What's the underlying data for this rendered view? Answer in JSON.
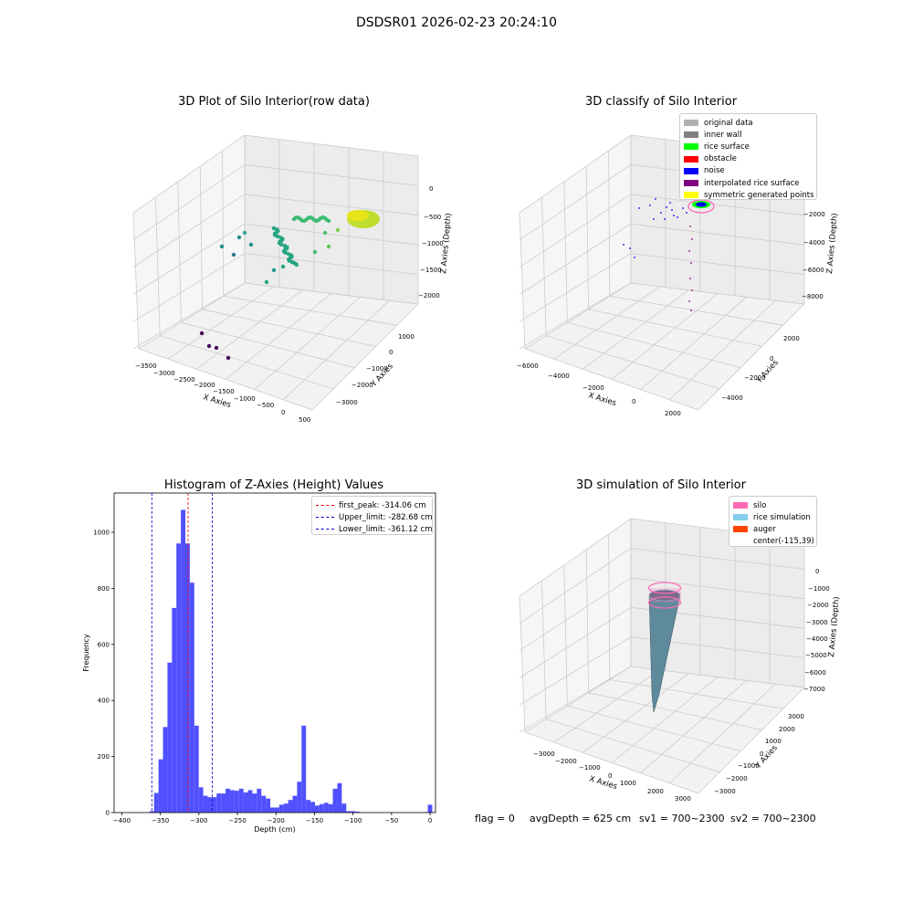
{
  "suptitle": "DSDSR01 2026-02-23 20:24:10",
  "footer": {
    "flag": "flag = 0",
    "avg": "avgDepth = 625 cm",
    "sv1": "sv1 = 700~2300",
    "sv2": "sv2 = 700~2300"
  },
  "colors": {
    "histogram_bar": "#5050ff",
    "first_peak": "#ff0000",
    "limits": "#0000cc",
    "silo": "#ff69b4",
    "rice_simulation": "#87ceeb",
    "auger": "#ff4500"
  },
  "chart_data": [
    {
      "type": "scatter",
      "projection": "3d",
      "title": "3D Plot of Silo Interior(row data)",
      "xlabel": "X Axies",
      "ylabel": "Y Axies",
      "zlabel": "Z Axies (Depth)",
      "xticks": [
        "−3500",
        "−3000",
        "−2500",
        "−2000",
        "−1500",
        "−1000",
        "−500",
        "0",
        "500"
      ],
      "yticks": [
        "1000",
        "0",
        "−1000",
        "−2000",
        "−3000"
      ],
      "zticks": [
        "0",
        "−500",
        "−1000",
        "−1500",
        "−2000"
      ],
      "colormap": "viridis",
      "grid": true
    },
    {
      "type": "scatter",
      "projection": "3d",
      "title": "3D classify of Silo Interior",
      "xlabel": "X Axies",
      "ylabel": "Y Axies",
      "zlabel": "Z Axies (Depth)",
      "xticks": [
        "−6000",
        "−4000",
        "−2000",
        "0",
        "2000"
      ],
      "yticks": [
        "2000",
        "0",
        "−2000",
        "−4000"
      ],
      "zticks": [
        "−2000",
        "−4000",
        "−6000",
        "−8000"
      ],
      "legend_position": "top-right",
      "legend": [
        {
          "label": "original data",
          "color": "#b0b0b0"
        },
        {
          "label": "inner wall",
          "color": "#808080"
        },
        {
          "label": "rice surface",
          "color": "#00ff00"
        },
        {
          "label": "obstacle",
          "color": "#ff0000"
        },
        {
          "label": "noise",
          "color": "#0000ff"
        },
        {
          "label": "interpolated rice surface",
          "color": "#800080"
        },
        {
          "label": "symmetric generated points",
          "color": "#ffff00"
        }
      ],
      "grid": true
    },
    {
      "type": "bar",
      "title": "Histogram of Z-Axies (Height) Values",
      "xlabel": "Depth (cm)",
      "ylabel": "Frequency",
      "xlim": [
        -410,
        7
      ],
      "ylim": [
        0,
        1140
      ],
      "xticks": [
        "−400",
        "−350",
        "−300",
        "−250",
        "−200",
        "−150",
        "−100",
        "−50",
        "0"
      ],
      "xtick_values": [
        -400,
        -350,
        -300,
        -250,
        -200,
        -150,
        -100,
        -50,
        0
      ],
      "yticks": [
        "0",
        "200",
        "400",
        "600",
        "800",
        "1000"
      ],
      "ytick_values": [
        0,
        200,
        400,
        600,
        800,
        1000
      ],
      "bin_width": 5.8,
      "bins": [
        {
          "x": -364.0,
          "count": 5
        },
        {
          "x": -358.2,
          "count": 70
        },
        {
          "x": -352.4,
          "count": 190
        },
        {
          "x": -346.6,
          "count": 305
        },
        {
          "x": -340.8,
          "count": 535
        },
        {
          "x": -335.0,
          "count": 730
        },
        {
          "x": -329.2,
          "count": 960
        },
        {
          "x": -323.4,
          "count": 1080
        },
        {
          "x": -317.6,
          "count": 960
        },
        {
          "x": -311.8,
          "count": 820
        },
        {
          "x": -306.0,
          "count": 310
        },
        {
          "x": -300.2,
          "count": 90
        },
        {
          "x": -294.4,
          "count": 60
        },
        {
          "x": -288.6,
          "count": 55
        },
        {
          "x": -282.8,
          "count": 55
        },
        {
          "x": -277.0,
          "count": 68
        },
        {
          "x": -271.2,
          "count": 68
        },
        {
          "x": -265.4,
          "count": 85
        },
        {
          "x": -259.6,
          "count": 80
        },
        {
          "x": -253.8,
          "count": 78
        },
        {
          "x": -248.0,
          "count": 85
        },
        {
          "x": -242.2,
          "count": 72
        },
        {
          "x": -236.4,
          "count": 80
        },
        {
          "x": -230.6,
          "count": 68
        },
        {
          "x": -224.8,
          "count": 85
        },
        {
          "x": -219.0,
          "count": 60
        },
        {
          "x": -213.2,
          "count": 50
        },
        {
          "x": -207.4,
          "count": 18
        },
        {
          "x": -201.6,
          "count": 18
        },
        {
          "x": -195.8,
          "count": 28
        },
        {
          "x": -190.0,
          "count": 32
        },
        {
          "x": -184.2,
          "count": 45
        },
        {
          "x": -178.4,
          "count": 60
        },
        {
          "x": -172.6,
          "count": 110
        },
        {
          "x": -166.8,
          "count": 310
        },
        {
          "x": -161.0,
          "count": 45
        },
        {
          "x": -155.2,
          "count": 38
        },
        {
          "x": -149.4,
          "count": 25
        },
        {
          "x": -143.6,
          "count": 30
        },
        {
          "x": -137.8,
          "count": 35
        },
        {
          "x": -132.0,
          "count": 30
        },
        {
          "x": -126.2,
          "count": 85
        },
        {
          "x": -120.4,
          "count": 105
        },
        {
          "x": -114.6,
          "count": 32
        },
        {
          "x": -108.8,
          "count": 5
        },
        {
          "x": -103.0,
          "count": 5
        },
        {
          "x": -97.2,
          "count": 3
        },
        {
          "x": -6.0,
          "count": 2
        },
        {
          "x": -3.0,
          "count": 28
        }
      ],
      "vlines": [
        {
          "label": "first_peak: -314.06 cm",
          "x": -314.06,
          "color": "#ff0000",
          "style": "dashed"
        },
        {
          "label": "Upper_limit: -282.68 cm",
          "x": -282.68,
          "color": "#0000cc",
          "style": "dashed"
        },
        {
          "label": "Lower_limit: -361.12 cm",
          "x": -361.12,
          "color": "#0000cc",
          "style": "dashed"
        }
      ],
      "legend_position": "top-right",
      "grid": false
    },
    {
      "type": "surface",
      "projection": "3d",
      "title": "3D simulation of Silo Interior",
      "xlabel": "X Axies",
      "ylabel": "Y Axies",
      "zlabel": "Z Axies (Depth)",
      "xticks": [
        "−3000",
        "−2000",
        "−1000",
        "0",
        "1000",
        "2000",
        "3000"
      ],
      "yticks": [
        "3000",
        "2000",
        "1000",
        "0",
        "−1000",
        "−2000",
        "−3000"
      ],
      "zticks": [
        "0",
        "−1000",
        "−2000",
        "−3000",
        "−4000",
        "−5000",
        "−6000",
        "−7000"
      ],
      "legend_position": "top-right",
      "legend": [
        {
          "label": "silo",
          "color": "#ff69b4"
        },
        {
          "label": "rice simulation",
          "color": "#87ceeb"
        },
        {
          "label": "auger",
          "color": "#ff4500"
        },
        {
          "label": "center(-115,39)",
          "color": ""
        }
      ],
      "grid": true
    }
  ]
}
